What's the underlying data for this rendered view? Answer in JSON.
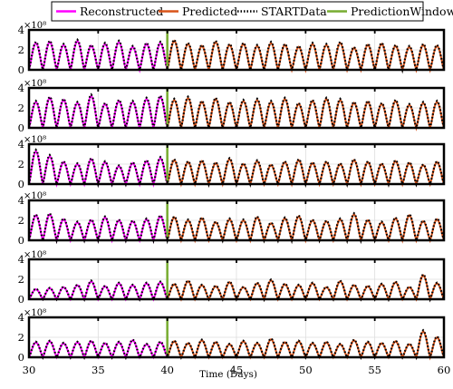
{
  "chart_data": {
    "type": "line",
    "xlabel": "Time (Days)",
    "ylabel": "",
    "xlim": [
      30,
      60
    ],
    "x_ticks": [
      30,
      35,
      40,
      45,
      50,
      55,
      60
    ],
    "ylim": [
      0,
      4
    ],
    "y_ticks": [
      0,
      2,
      4
    ],
    "y_exponent_label": "×10⁸",
    "y_multiplier": 100000000,
    "prediction_window_day": 40,
    "grid": true,
    "legend_position": "top",
    "legend": [
      {
        "name": "Reconstructed",
        "color": "#ff00ff",
        "style": "solid"
      },
      {
        "name": "Predicted",
        "color": "#d95319",
        "style": "solid"
      },
      {
        "name": "STARTData",
        "color": "#000000",
        "style": "dotted"
      },
      {
        "name": "PredictionWindow",
        "color": "#77ac30",
        "style": "solid"
      }
    ],
    "cycles_per_day": 1,
    "panels": [
      {
        "panel": 1,
        "peak_values": [
          2.7,
          2.8,
          2.5,
          2.9,
          2.4,
          2.6,
          2.8,
          2.3,
          2.6,
          2.7,
          2.9,
          2.6,
          2.4,
          2.8,
          2.5,
          2.6,
          2.4,
          2.7,
          2.5,
          2.3,
          2.6,
          2.5,
          2.7,
          2.2,
          2.5,
          2.6,
          2.4,
          2.3,
          2.5,
          2.4
        ]
      },
      {
        "panel": 2,
        "peak_values": [
          2.6,
          3.0,
          2.8,
          2.5,
          3.2,
          2.4,
          2.7,
          2.6,
          2.9,
          3.1,
          2.8,
          3.0,
          2.6,
          2.9,
          2.5,
          2.7,
          2.8,
          2.6,
          2.9,
          2.4,
          2.7,
          2.9,
          2.8,
          2.5,
          2.6,
          2.4,
          2.7,
          2.3,
          2.5,
          2.6
        ]
      },
      {
        "panel": 3,
        "peak_values": [
          3.3,
          2.8,
          2.2,
          2.0,
          2.5,
          2.2,
          1.8,
          2.1,
          2.3,
          2.6,
          2.4,
          2.2,
          2.3,
          2.1,
          2.5,
          2.0,
          2.3,
          1.9,
          2.2,
          2.4,
          2.1,
          2.2,
          2.0,
          2.4,
          2.2,
          2.0,
          2.3,
          2.1,
          1.9,
          2.2
        ]
      },
      {
        "panel": 4,
        "peak_values": [
          2.5,
          2.6,
          2.1,
          1.8,
          2.0,
          2.3,
          2.0,
          1.9,
          2.1,
          2.4,
          2.3,
          2.0,
          2.2,
          1.8,
          2.1,
          2.0,
          2.3,
          1.7,
          2.2,
          2.4,
          2.0,
          1.9,
          2.1,
          2.6,
          2.0,
          1.8,
          2.2,
          2.5,
          1.9,
          2.1
        ]
      },
      {
        "panel": 5,
        "peak_values": [
          1.0,
          1.1,
          1.2,
          1.4,
          1.8,
          1.3,
          1.6,
          1.4,
          1.6,
          1.7,
          1.5,
          1.8,
          1.4,
          1.3,
          1.7,
          1.2,
          1.6,
          1.9,
          1.5,
          1.4,
          1.6,
          1.2,
          1.8,
          1.4,
          1.3,
          1.5,
          1.7,
          1.2,
          2.4,
          1.6
        ]
      },
      {
        "panel": 6,
        "peak_values": [
          1.5,
          1.6,
          1.4,
          1.5,
          1.6,
          1.4,
          1.5,
          1.7,
          1.3,
          1.5,
          1.6,
          1.4,
          1.7,
          1.5,
          1.3,
          1.6,
          1.4,
          1.8,
          1.5,
          1.6,
          1.4,
          1.5,
          1.3,
          1.7,
          1.5,
          1.4,
          1.6,
          1.3,
          2.6,
          2.0
        ]
      }
    ]
  }
}
